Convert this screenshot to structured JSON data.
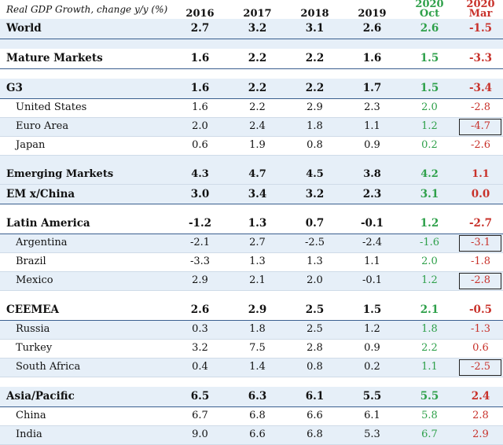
{
  "header": {
    "title": "Real GDP Growth, change y/y (%)",
    "years": [
      "2016",
      "2017",
      "2018",
      "2019"
    ],
    "oct": {
      "year": "2020",
      "label": "Oct"
    },
    "mar": {
      "year": "2020",
      "label": "Mar"
    }
  },
  "rows": [
    {
      "label": "World",
      "values": [
        "2.7",
        "3.2",
        "3.1",
        "2.6"
      ],
      "oct": "2.6",
      "mar": "-1.5",
      "type": "header",
      "shade": true
    },
    {
      "type": "spacer",
      "shade": true
    },
    {
      "label": "Mature Markets",
      "values": [
        "1.6",
        "2.2",
        "2.2",
        "1.6"
      ],
      "oct": "1.5",
      "mar": "-3.3",
      "type": "header"
    },
    {
      "type": "spacer"
    },
    {
      "label": "G3",
      "values": [
        "1.6",
        "2.2",
        "2.2",
        "1.7"
      ],
      "oct": "1.5",
      "mar": "-3.4",
      "type": "header",
      "shade": true
    },
    {
      "label": "United States",
      "values": [
        "1.6",
        "2.2",
        "2.9",
        "2.3"
      ],
      "oct": "2.0",
      "mar": "-2.8",
      "type": "sub"
    },
    {
      "label": "Euro Area",
      "values": [
        "2.0",
        "2.4",
        "1.8",
        "1.1"
      ],
      "oct": "1.2",
      "mar": "-4.7",
      "type": "sub",
      "shade": true,
      "boxed": true
    },
    {
      "label": "Japan",
      "values": [
        "0.6",
        "1.9",
        "0.8",
        "0.9"
      ],
      "oct": "0.2",
      "mar": "-2.6",
      "type": "sub"
    },
    {
      "type": "spacer",
      "shade": true
    },
    {
      "label": "Emerging Markets",
      "values": [
        "4.3",
        "4.7",
        "4.5",
        "3.8"
      ],
      "oct": "4.2",
      "mar": "1.1",
      "type": "bold",
      "shade": true
    },
    {
      "label": "EM x/China",
      "values": [
        "3.0",
        "3.4",
        "3.2",
        "2.3"
      ],
      "oct": "3.1",
      "mar": "0.0",
      "type": "header",
      "shade": true
    },
    {
      "type": "spacer"
    },
    {
      "label": "Latin America",
      "values": [
        "-1.2",
        "1.3",
        "0.7",
        "-0.1"
      ],
      "oct": "1.2",
      "mar": "-2.7",
      "type": "header"
    },
    {
      "label": "Argentina",
      "values": [
        "-2.1",
        "2.7",
        "-2.5",
        "-2.4"
      ],
      "oct": "-1.6",
      "mar": "-3.1",
      "type": "sub",
      "shade": true,
      "boxed": true
    },
    {
      "label": "Brazil",
      "values": [
        "-3.3",
        "1.3",
        "1.3",
        "1.1"
      ],
      "oct": "2.0",
      "mar": "-1.8",
      "type": "sub"
    },
    {
      "label": "Mexico",
      "values": [
        "2.9",
        "2.1",
        "2.0",
        "-0.1"
      ],
      "oct": "1.2",
      "mar": "-2.8",
      "type": "sub",
      "shade": true,
      "boxed": true
    },
    {
      "type": "spacer"
    },
    {
      "label": "CEEMEA",
      "values": [
        "2.6",
        "2.9",
        "2.5",
        "1.5"
      ],
      "oct": "2.1",
      "mar": "-0.5",
      "type": "header"
    },
    {
      "label": "Russia",
      "values": [
        "0.3",
        "1.8",
        "2.5",
        "1.2"
      ],
      "oct": "1.8",
      "mar": "-1.3",
      "type": "sub",
      "shade": true
    },
    {
      "label": "Turkey",
      "values": [
        "3.2",
        "7.5",
        "2.8",
        "0.9"
      ],
      "oct": "2.2",
      "mar": "0.6",
      "type": "sub"
    },
    {
      "label": "South Africa",
      "values": [
        "0.4",
        "1.4",
        "0.8",
        "0.2"
      ],
      "oct": "1.1",
      "mar": "-2.5",
      "type": "sub",
      "shade": true,
      "boxed": true
    },
    {
      "type": "spacer"
    },
    {
      "label": "Asia/Pacific",
      "values": [
        "6.5",
        "6.3",
        "6.1",
        "5.5"
      ],
      "oct": "5.5",
      "mar": "2.4",
      "type": "header",
      "shade": true
    },
    {
      "label": "China",
      "values": [
        "6.7",
        "6.8",
        "6.6",
        "6.1"
      ],
      "oct": "5.8",
      "mar": "2.8",
      "type": "sub"
    },
    {
      "label": "India",
      "values": [
        "9.0",
        "6.6",
        "6.8",
        "5.3"
      ],
      "oct": "6.7",
      "mar": "2.9",
      "type": "sub",
      "shade": true
    }
  ]
}
